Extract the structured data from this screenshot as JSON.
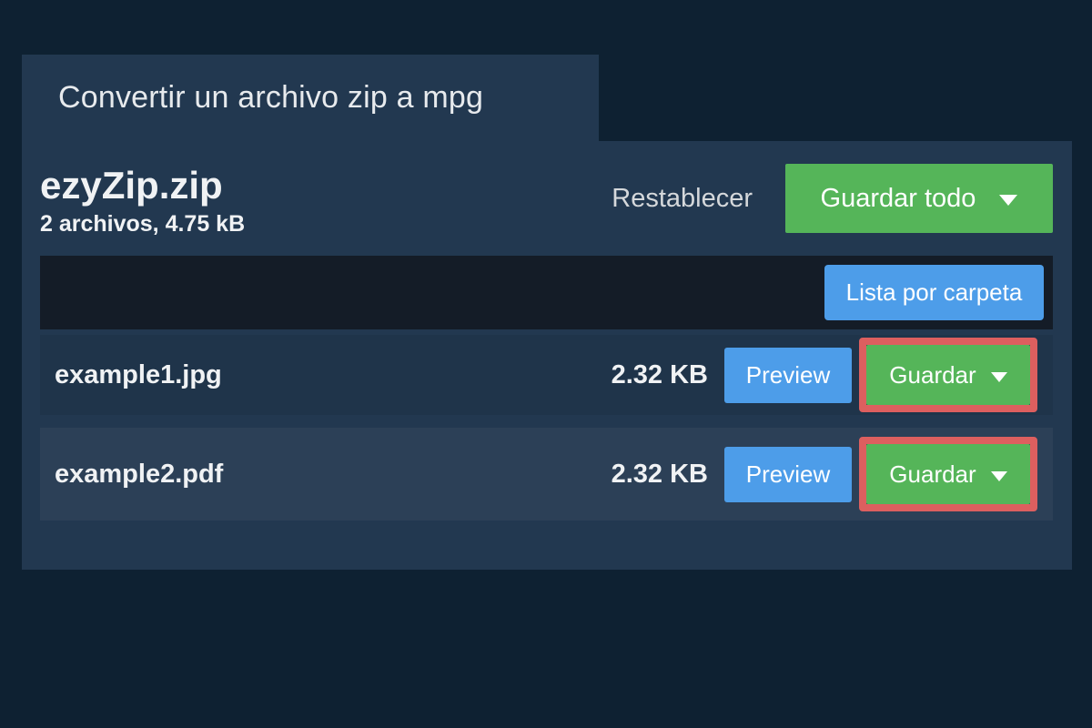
{
  "page": {
    "title": "Convertir un archivo zip a mpg"
  },
  "archive": {
    "name": "ezyZip.zip",
    "summary": "2 archivos, 4.75 kB",
    "reset_label": "Restablecer",
    "save_all_label": "Guardar todo"
  },
  "toolbar": {
    "list_by_folder_label": "Lista por carpeta"
  },
  "files": [
    {
      "name": "example1.jpg",
      "size": "2.32 KB",
      "preview_label": "Preview",
      "save_label": "Guardar"
    },
    {
      "name": "example2.pdf",
      "size": "2.32 KB",
      "preview_label": "Preview",
      "save_label": "Guardar"
    }
  ],
  "icons": {
    "save_all_caret": "caret-down",
    "save_caret": "caret-down"
  },
  "colors": {
    "page_bg": "#0e2132",
    "panel_bg": "#223850",
    "toolbar_bg": "#141c27",
    "row_odd_bg": "#1f344a",
    "row_even_bg": "#2c4057",
    "accent_green": "#55b559",
    "accent_blue": "#4d9de9",
    "highlight_red": "#dd5f5f",
    "text_primary": "#f0f2f4",
    "text_muted": "#d5d8db"
  }
}
